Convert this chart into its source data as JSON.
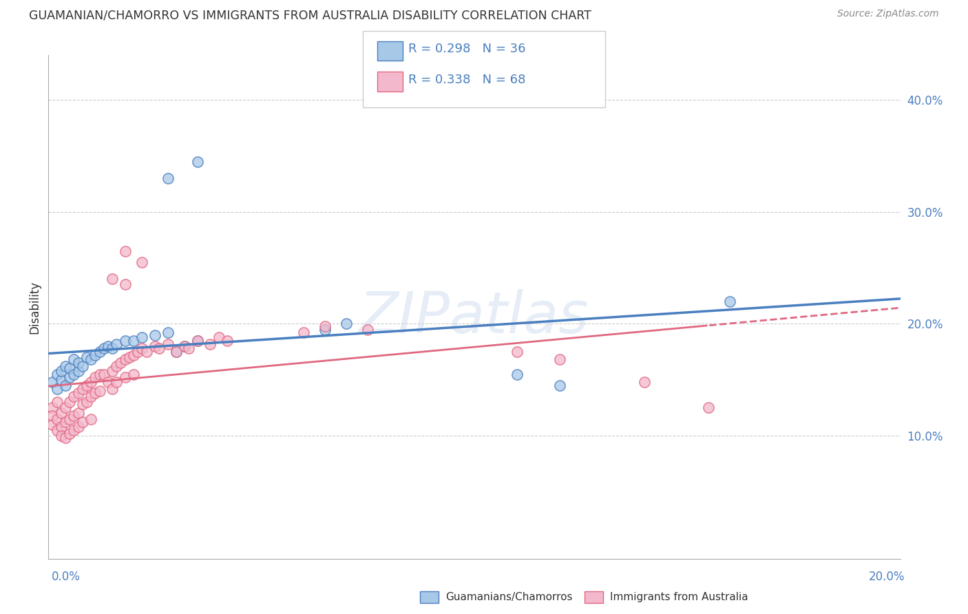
{
  "title": "GUAMANIAN/CHAMORRO VS IMMIGRANTS FROM AUSTRALIA DISABILITY CORRELATION CHART",
  "source": "Source: ZipAtlas.com",
  "ylabel": "Disability",
  "xlim": [
    0.0,
    0.2
  ],
  "ylim": [
    -0.01,
    0.44
  ],
  "yticks": [
    0.1,
    0.2,
    0.3,
    0.4
  ],
  "ytick_labels": [
    "10.0%",
    "20.0%",
    "30.0%",
    "40.0%"
  ],
  "color_blue": "#a8c8e8",
  "color_pink": "#f4b8cc",
  "color_blue_line": "#4a7fc0",
  "color_pink_line": "#e06880",
  "blue_scatter": [
    [
      0.001,
      0.148
    ],
    [
      0.002,
      0.155
    ],
    [
      0.002,
      0.142
    ],
    [
      0.003,
      0.15
    ],
    [
      0.003,
      0.158
    ],
    [
      0.004,
      0.145
    ],
    [
      0.004,
      0.162
    ],
    [
      0.005,
      0.152
    ],
    [
      0.005,
      0.16
    ],
    [
      0.006,
      0.155
    ],
    [
      0.006,
      0.168
    ],
    [
      0.007,
      0.158
    ],
    [
      0.007,
      0.165
    ],
    [
      0.008,
      0.162
    ],
    [
      0.009,
      0.17
    ],
    [
      0.01,
      0.168
    ],
    [
      0.011,
      0.172
    ],
    [
      0.012,
      0.175
    ],
    [
      0.013,
      0.178
    ],
    [
      0.014,
      0.18
    ],
    [
      0.015,
      0.178
    ],
    [
      0.016,
      0.182
    ],
    [
      0.018,
      0.185
    ],
    [
      0.02,
      0.185
    ],
    [
      0.022,
      0.188
    ],
    [
      0.025,
      0.19
    ],
    [
      0.028,
      0.192
    ],
    [
      0.03,
      0.175
    ],
    [
      0.032,
      0.18
    ],
    [
      0.035,
      0.185
    ],
    [
      0.028,
      0.33
    ],
    [
      0.035,
      0.345
    ],
    [
      0.065,
      0.195
    ],
    [
      0.07,
      0.2
    ],
    [
      0.11,
      0.155
    ],
    [
      0.12,
      0.145
    ],
    [
      0.16,
      0.22
    ]
  ],
  "pink_scatter": [
    [
      0.001,
      0.125
    ],
    [
      0.001,
      0.118
    ],
    [
      0.001,
      0.11
    ],
    [
      0.002,
      0.13
    ],
    [
      0.002,
      0.115
    ],
    [
      0.002,
      0.105
    ],
    [
      0.003,
      0.12
    ],
    [
      0.003,
      0.108
    ],
    [
      0.003,
      0.1
    ],
    [
      0.004,
      0.125
    ],
    [
      0.004,
      0.112
    ],
    [
      0.004,
      0.098
    ],
    [
      0.005,
      0.13
    ],
    [
      0.005,
      0.115
    ],
    [
      0.005,
      0.102
    ],
    [
      0.006,
      0.135
    ],
    [
      0.006,
      0.118
    ],
    [
      0.006,
      0.105
    ],
    [
      0.007,
      0.138
    ],
    [
      0.007,
      0.12
    ],
    [
      0.007,
      0.108
    ],
    [
      0.008,
      0.142
    ],
    [
      0.008,
      0.128
    ],
    [
      0.008,
      0.112
    ],
    [
      0.009,
      0.145
    ],
    [
      0.009,
      0.13
    ],
    [
      0.01,
      0.148
    ],
    [
      0.01,
      0.135
    ],
    [
      0.01,
      0.115
    ],
    [
      0.011,
      0.152
    ],
    [
      0.011,
      0.138
    ],
    [
      0.012,
      0.155
    ],
    [
      0.012,
      0.14
    ],
    [
      0.013,
      0.155
    ],
    [
      0.014,
      0.148
    ],
    [
      0.015,
      0.158
    ],
    [
      0.015,
      0.142
    ],
    [
      0.016,
      0.162
    ],
    [
      0.016,
      0.148
    ],
    [
      0.017,
      0.165
    ],
    [
      0.018,
      0.168
    ],
    [
      0.018,
      0.152
    ],
    [
      0.019,
      0.17
    ],
    [
      0.02,
      0.172
    ],
    [
      0.02,
      0.155
    ],
    [
      0.021,
      0.175
    ],
    [
      0.022,
      0.178
    ],
    [
      0.023,
      0.175
    ],
    [
      0.025,
      0.18
    ],
    [
      0.026,
      0.178
    ],
    [
      0.028,
      0.182
    ],
    [
      0.03,
      0.175
    ],
    [
      0.032,
      0.18
    ],
    [
      0.033,
      0.178
    ],
    [
      0.035,
      0.185
    ],
    [
      0.038,
      0.182
    ],
    [
      0.04,
      0.188
    ],
    [
      0.042,
      0.185
    ],
    [
      0.018,
      0.265
    ],
    [
      0.022,
      0.255
    ],
    [
      0.018,
      0.235
    ],
    [
      0.015,
      0.24
    ],
    [
      0.06,
      0.192
    ],
    [
      0.065,
      0.198
    ],
    [
      0.075,
      0.195
    ],
    [
      0.11,
      0.175
    ],
    [
      0.12,
      0.168
    ],
    [
      0.14,
      0.148
    ],
    [
      0.155,
      0.125
    ]
  ]
}
